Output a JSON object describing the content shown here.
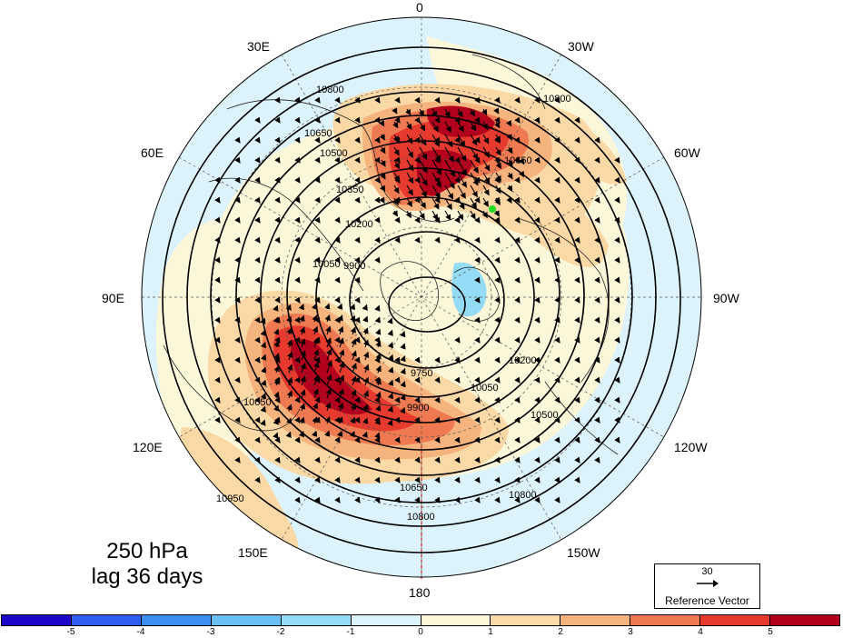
{
  "title": {
    "level": "250 hPa",
    "lag": "lag 36 days"
  },
  "lon_labels": {
    "top": "0",
    "bottom": "180",
    "left": "90E",
    "right": "90W",
    "l30e": "30E",
    "l60e": "60E",
    "l120e": "120E",
    "l150e": "150E",
    "l30w": "30W",
    "l60w": "60W",
    "l120w": "120W",
    "l150w": "150W"
  },
  "reference_vector": {
    "value": "30",
    "label": "Reference Vector"
  },
  "colorbar": {
    "colors": [
      "#1b06c8",
      "#2f5ef0",
      "#3c8ef0",
      "#69bff2",
      "#94dcf5",
      "#dcf3fc",
      "#fdf7da",
      "#fbd9a6",
      "#f5b47d",
      "#ef7a52",
      "#e63a2e",
      "#b3001c"
    ],
    "ticks": [
      "-5",
      "-4",
      "-3",
      "-2",
      "-1",
      "0",
      "1",
      "2",
      "3",
      "4",
      "5"
    ]
  },
  "contours": {
    "levels": [
      "9750",
      "9900",
      "10050",
      "10200",
      "10350",
      "10500",
      "10650",
      "10800",
      "10950"
    ],
    "labels": [
      "10800",
      "10650",
      "10500",
      "10350",
      "10200",
      "10050",
      "9900",
      "9750",
      "10650",
      "10800",
      "10950",
      "10800",
      "10650",
      "10500",
      "10200",
      "10050",
      "9900",
      "10800",
      "10650"
    ]
  },
  "marker": {
    "color": "#22dd22",
    "name": "green-point"
  }
}
